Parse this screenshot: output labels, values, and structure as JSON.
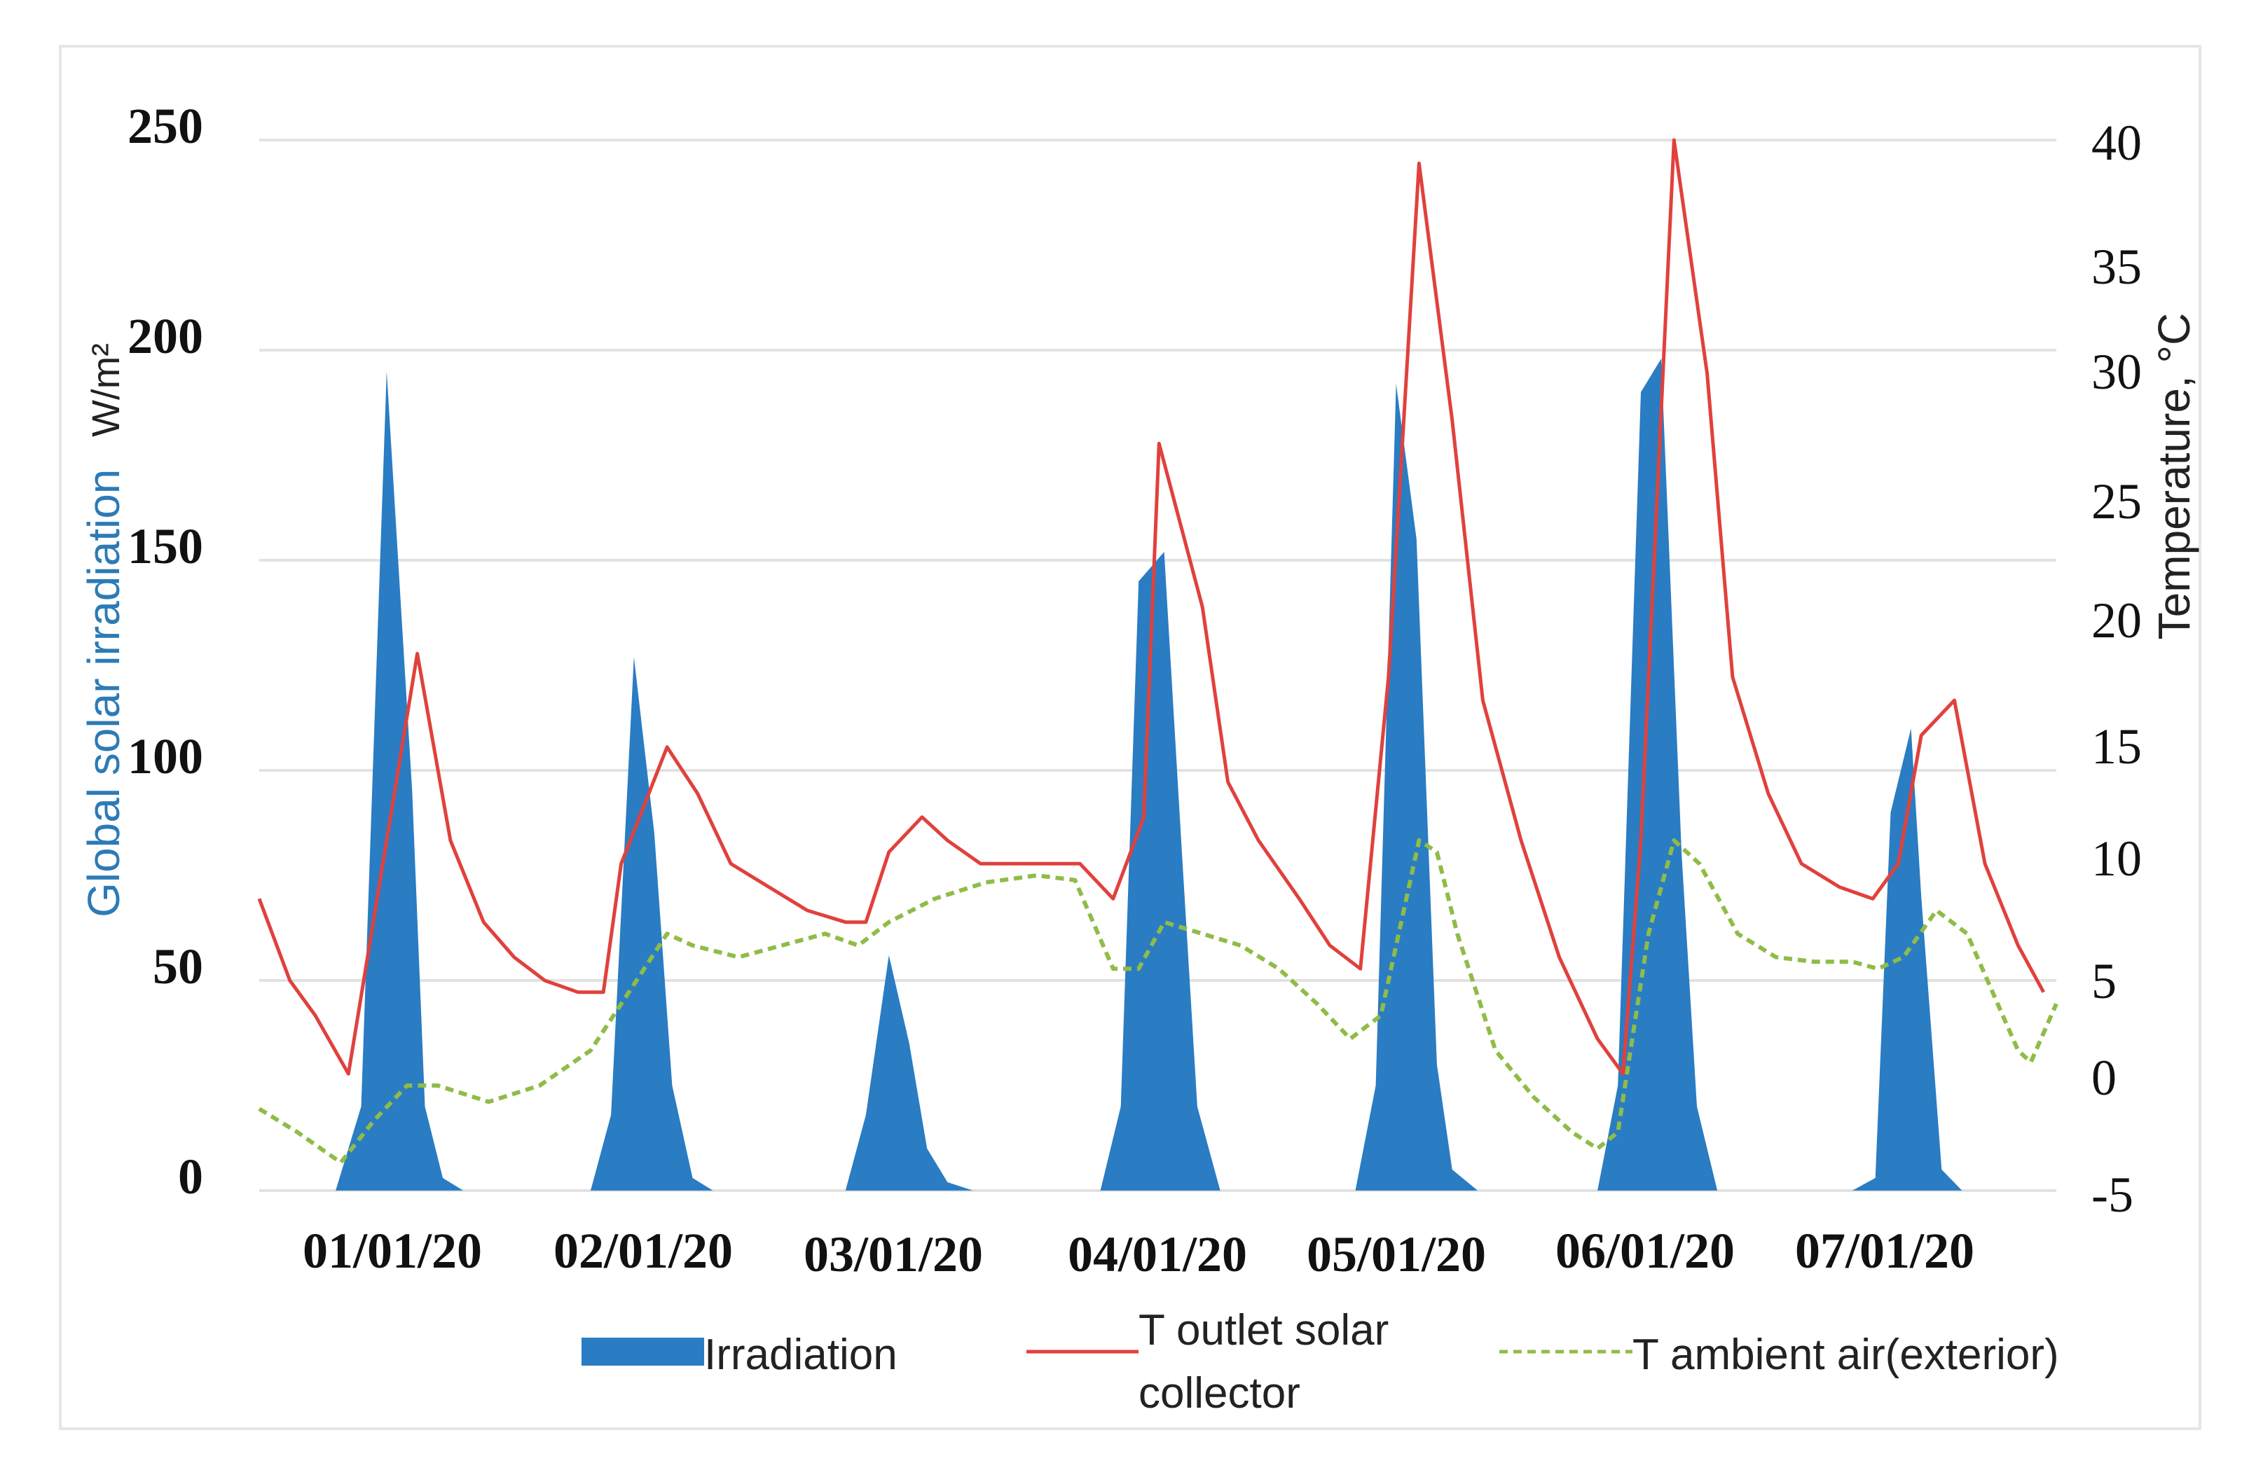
{
  "chart_data": {
    "type": "area",
    "title": "",
    "xlabel": "",
    "ylabel_left": "Global solar irradiation",
    "ylabel_left_unit": "W/m²",
    "ylabel_right": "Temperature, °C",
    "ylim_left": [
      0,
      250
    ],
    "ylim_right": [
      -5,
      40
    ],
    "yticks_left": [
      "0",
      "50",
      "100",
      "150",
      "200",
      "250"
    ],
    "yticks_right": [
      "-5",
      "0",
      "5",
      "10",
      "15",
      "20",
      "25",
      "30",
      "35",
      "40"
    ],
    "grid": true,
    "x_range": [
      -0.5,
      6.55
    ],
    "categories": [
      "01/01/20",
      "02/01/20",
      "03/01/20",
      "04/01/20",
      "05/01/20",
      "06/01/20",
      "07/01/20"
    ],
    "colors": {
      "irradiation": "#2a7cc3",
      "t_outlet": "#e0413d",
      "t_ambient": "#8fbc48",
      "grid": "#e2e2e2",
      "left_axis_label": "#2c7bb6"
    },
    "series": [
      {
        "name": "Irradiation",
        "axis": "left",
        "kind": "area",
        "points": [
          [
            -0.2,
            0
          ],
          [
            -0.1,
            20
          ],
          [
            0.0,
            195
          ],
          [
            0.1,
            95
          ],
          [
            0.15,
            20
          ],
          [
            0.22,
            3
          ],
          [
            0.3,
            0
          ],
          [
            0.8,
            0
          ],
          [
            0.88,
            18
          ],
          [
            0.97,
            127
          ],
          [
            1.05,
            85
          ],
          [
            1.12,
            25
          ],
          [
            1.2,
            3
          ],
          [
            1.28,
            0
          ],
          [
            1.8,
            0
          ],
          [
            1.88,
            18
          ],
          [
            1.97,
            56
          ],
          [
            2.05,
            35
          ],
          [
            2.12,
            10
          ],
          [
            2.2,
            2
          ],
          [
            2.3,
            0
          ],
          [
            2.8,
            0
          ],
          [
            2.88,
            20
          ],
          [
            2.95,
            145
          ],
          [
            3.05,
            152
          ],
          [
            3.12,
            80
          ],
          [
            3.18,
            20
          ],
          [
            3.27,
            0
          ],
          [
            3.8,
            0
          ],
          [
            3.88,
            25
          ],
          [
            3.96,
            192
          ],
          [
            4.04,
            155
          ],
          [
            4.12,
            30
          ],
          [
            4.18,
            5
          ],
          [
            4.28,
            0
          ],
          [
            4.75,
            0
          ],
          [
            4.83,
            25
          ],
          [
            4.92,
            190
          ],
          [
            5.0,
            198
          ],
          [
            5.08,
            80
          ],
          [
            5.14,
            20
          ],
          [
            5.22,
            0
          ],
          [
            5.75,
            0
          ],
          [
            5.84,
            3
          ],
          [
            5.9,
            90
          ],
          [
            5.98,
            110
          ],
          [
            6.02,
            70
          ],
          [
            6.1,
            5
          ],
          [
            6.18,
            0
          ]
        ]
      },
      {
        "name": "T outlet solar collector",
        "axis": "right",
        "kind": "line",
        "points": [
          [
            -0.5,
            7.5
          ],
          [
            -0.38,
            4
          ],
          [
            -0.28,
            2.5
          ],
          [
            -0.15,
            0
          ],
          [
            0.0,
            10
          ],
          [
            0.12,
            18
          ],
          [
            0.25,
            10
          ],
          [
            0.38,
            6.5
          ],
          [
            0.5,
            5
          ],
          [
            0.62,
            4
          ],
          [
            0.75,
            3.5
          ],
          [
            0.85,
            3.5
          ],
          [
            0.92,
            9
          ],
          [
            1.1,
            14
          ],
          [
            1.22,
            12
          ],
          [
            1.35,
            9
          ],
          [
            1.5,
            8
          ],
          [
            1.65,
            7
          ],
          [
            1.8,
            6.5
          ],
          [
            1.88,
            6.5
          ],
          [
            1.97,
            9.5
          ],
          [
            2.1,
            11
          ],
          [
            2.2,
            10
          ],
          [
            2.33,
            9
          ],
          [
            2.48,
            9
          ],
          [
            2.62,
            9
          ],
          [
            2.72,
            9
          ],
          [
            2.85,
            7.5
          ],
          [
            2.97,
            11
          ],
          [
            3.03,
            27
          ],
          [
            3.2,
            20
          ],
          [
            3.3,
            12.5
          ],
          [
            3.42,
            10
          ],
          [
            3.58,
            7.5
          ],
          [
            3.7,
            5.5
          ],
          [
            3.82,
            4.5
          ],
          [
            3.93,
            17
          ],
          [
            4.05,
            39
          ],
          [
            4.18,
            28
          ],
          [
            4.3,
            16
          ],
          [
            4.45,
            10
          ],
          [
            4.6,
            5
          ],
          [
            4.75,
            1.5
          ],
          [
            4.85,
            0
          ],
          [
            4.92,
            10
          ],
          [
            5.05,
            40
          ],
          [
            5.18,
            30
          ],
          [
            5.28,
            17
          ],
          [
            5.42,
            12
          ],
          [
            5.55,
            9
          ],
          [
            5.7,
            8
          ],
          [
            5.83,
            7.5
          ],
          [
            5.93,
            9
          ],
          [
            6.02,
            14.5
          ],
          [
            6.15,
            16
          ],
          [
            6.27,
            9
          ],
          [
            6.4,
            5.5
          ],
          [
            6.5,
            3.5
          ]
        ]
      },
      {
        "name": "T ambient air(exterior)",
        "axis": "right",
        "kind": "dashed",
        "points": [
          [
            -0.5,
            -1.5
          ],
          [
            -0.35,
            -2.5
          ],
          [
            -0.18,
            -3.8
          ],
          [
            -0.05,
            -2
          ],
          [
            0.08,
            -0.5
          ],
          [
            0.2,
            -0.5
          ],
          [
            0.4,
            -1.2
          ],
          [
            0.6,
            -0.5
          ],
          [
            0.8,
            1
          ],
          [
            0.95,
            3.5
          ],
          [
            1.1,
            6
          ],
          [
            1.2,
            5.5
          ],
          [
            1.38,
            5
          ],
          [
            1.55,
            5.5
          ],
          [
            1.72,
            6
          ],
          [
            1.85,
            5.5
          ],
          [
            1.97,
            6.5
          ],
          [
            2.15,
            7.5
          ],
          [
            2.35,
            8.2
          ],
          [
            2.55,
            8.5
          ],
          [
            2.7,
            8.3
          ],
          [
            2.85,
            4.5
          ],
          [
            2.95,
            4.5
          ],
          [
            3.05,
            6.5
          ],
          [
            3.2,
            6
          ],
          [
            3.35,
            5.5
          ],
          [
            3.5,
            4.5
          ],
          [
            3.65,
            3
          ],
          [
            3.78,
            1.5
          ],
          [
            3.9,
            2.5
          ],
          [
            4.05,
            10
          ],
          [
            4.12,
            9.5
          ],
          [
            4.2,
            6
          ],
          [
            4.35,
            1
          ],
          [
            4.5,
            -1
          ],
          [
            4.65,
            -2.5
          ],
          [
            4.75,
            -3.2
          ],
          [
            4.83,
            -2.5
          ],
          [
            4.95,
            6
          ],
          [
            5.05,
            10
          ],
          [
            5.15,
            9
          ],
          [
            5.3,
            6
          ],
          [
            5.45,
            5
          ],
          [
            5.6,
            4.8
          ],
          [
            5.75,
            4.8
          ],
          [
            5.85,
            4.5
          ],
          [
            5.95,
            5
          ],
          [
            6.08,
            7
          ],
          [
            6.2,
            6
          ],
          [
            6.3,
            3.5
          ],
          [
            6.4,
            1
          ],
          [
            6.45,
            0.5
          ],
          [
            6.55,
            3
          ]
        ]
      }
    ],
    "legend": {
      "placement": "bottom",
      "items": [
        {
          "line1": "Irradiation"
        },
        {
          "line1": "T outlet solar",
          "line2": "collector"
        },
        {
          "line1": "T ambient air(exterior)"
        }
      ]
    }
  }
}
